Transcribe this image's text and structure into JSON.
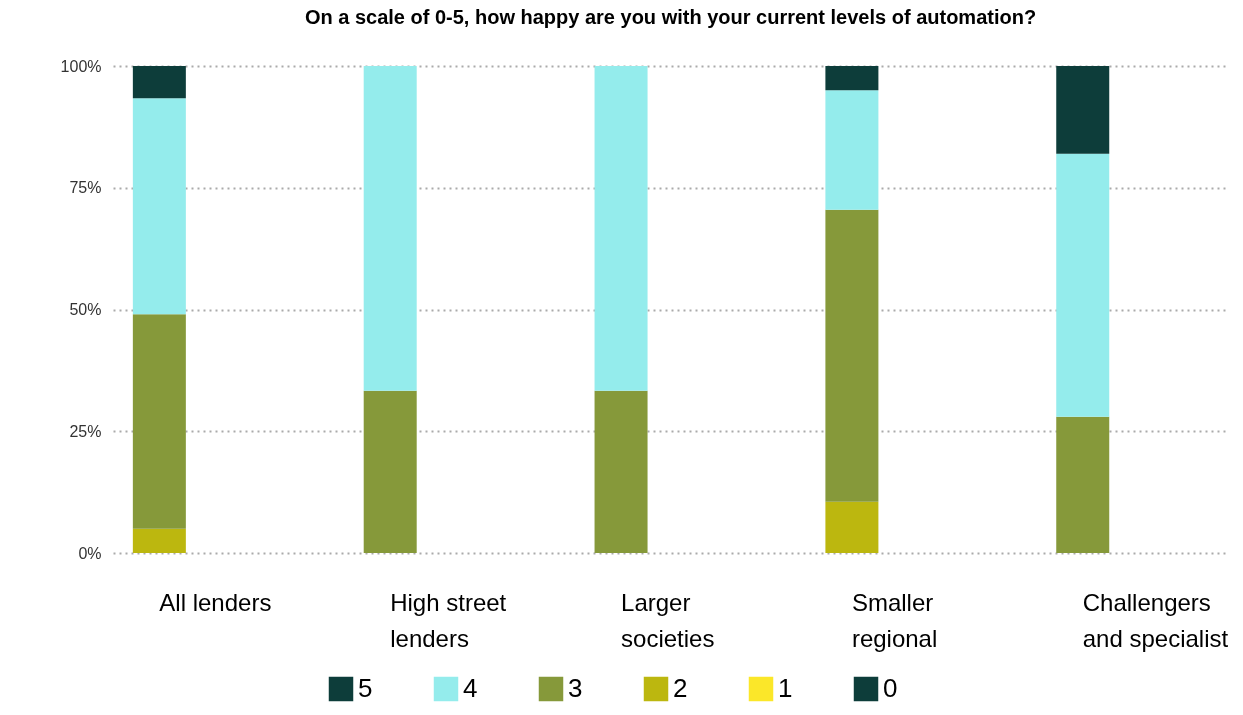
{
  "chart_data": {
    "type": "bar",
    "title": "On a scale of 0-5, how happy are you with your current levels of automation?",
    "categories": [
      "All lenders",
      "High street lenders",
      "Larger societies",
      "Smaller regional",
      "Challengers and specialist"
    ],
    "stacked": true,
    "series": [
      {
        "name": "0",
        "color": "#0d3d3a",
        "values": [
          0,
          0,
          0,
          0,
          0
        ]
      },
      {
        "name": "1",
        "color": "#fbe729",
        "values": [
          0,
          0,
          0,
          0,
          0
        ]
      },
      {
        "name": "2",
        "color": "#bcb70f",
        "values": [
          5,
          0,
          0,
          10.5,
          0
        ]
      },
      {
        "name": "3",
        "color": "#86993a",
        "values": [
          44,
          33.3,
          33.3,
          60,
          28
        ]
      },
      {
        "name": "4",
        "color": "#94ecec",
        "values": [
          44.4,
          66.7,
          66.7,
          24.5,
          54
        ]
      },
      {
        "name": "5",
        "color": "#0d3d3a",
        "values": [
          6.6,
          0,
          0,
          5,
          18
        ]
      }
    ],
    "ylim": [
      0,
      100
    ],
    "yticks": [
      {
        "value": 0,
        "label": "0%"
      },
      {
        "value": 25,
        "label": "25%"
      },
      {
        "value": 50,
        "label": "50%"
      },
      {
        "value": 75,
        "label": "75%"
      },
      {
        "value": 100,
        "label": "100%"
      }
    ],
    "grid": "y",
    "legend": "bottom"
  }
}
